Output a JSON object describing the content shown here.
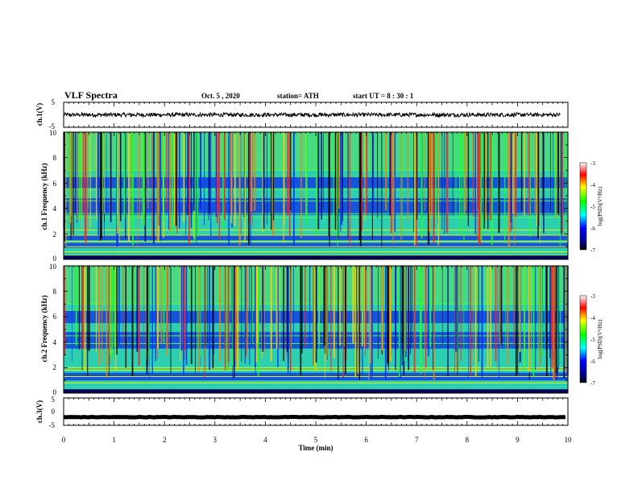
{
  "chart_data": [
    {
      "type": "line",
      "title": "VLF Spectra",
      "date": "Oct. 5 , 2020",
      "station": "station= ATH",
      "start_ut": "start UT = 8 : 30 : 1",
      "ylabel": "ch.1(V)",
      "ylim": [
        -5,
        5
      ],
      "y_ticks": [
        "5",
        "-5"
      ],
      "xlim": [
        0,
        9.85
      ],
      "series_baseline": 0,
      "series_noise_amplitude": 0.8
    },
    {
      "type": "heatmap",
      "ylabel": "ch.1 Frequency (kHz)",
      "ylim": [
        0,
        10
      ],
      "y_ticks": [
        "0",
        "2",
        "4",
        "6",
        "8",
        "10"
      ],
      "colorbar": {
        "label": "log(PSD)(V²/Hz)",
        "range": [
          -7,
          -3
        ],
        "ticks": [
          "-3",
          "-4",
          "-5",
          "-6",
          "-7"
        ]
      },
      "horizontal_lines_khz": [
        0.3,
        0.6,
        1.0,
        1.4,
        1.9,
        2.3,
        3.3,
        3.6,
        4.6,
        5.5,
        6.5,
        7.0
      ],
      "blue_bands_khz": [
        [
          0.9,
          1.3
        ],
        [
          1.5,
          1.9
        ],
        [
          3.5,
          4.8
        ],
        [
          5.6,
          6.5
        ]
      ]
    },
    {
      "type": "heatmap",
      "ylabel": "ch.2 Frequency (kHz)",
      "ylim": [
        0,
        10
      ],
      "y_ticks": [
        "0",
        "2",
        "4",
        "6",
        "8",
        "10"
      ],
      "colorbar": {
        "label": "log(PSD)(V²/Hz)",
        "range": [
          -7,
          -3
        ],
        "ticks": [
          "-3",
          "-4",
          "-5",
          "-6",
          "-7"
        ]
      },
      "horizontal_lines_khz": [
        0.8,
        1.3,
        1.8,
        2.0,
        3.9,
        4.5,
        6.5,
        7.0
      ],
      "blue_bands_khz": [
        [
          1.0,
          1.6
        ],
        [
          3.5,
          4.8
        ],
        [
          5.5,
          6.5
        ]
      ]
    },
    {
      "type": "line",
      "ylabel": "ch.3(V)",
      "ylim": [
        -5,
        5
      ],
      "y_ticks": [
        "5",
        "0",
        "-5"
      ],
      "xlabel": "Time (min)",
      "x_ticks": [
        "0",
        "1",
        "2",
        "3",
        "4",
        "5",
        "6",
        "7",
        "8",
        "9",
        "10"
      ],
      "xlim": [
        0,
        10
      ],
      "series_baseline": -2,
      "series_noise_amplitude": 0.1
    }
  ]
}
